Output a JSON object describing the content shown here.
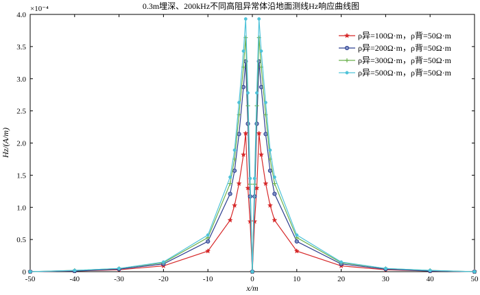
{
  "chart_data": {
    "type": "line",
    "title": "0.3m埋深、200kHz不同高阻异常体沿地面测线Hz响应曲线图",
    "xlabel": "x/m",
    "ylabel": "Hz/(A/m)",
    "y_multiplier": "×10⁻⁴",
    "xlim": [
      -50,
      50
    ],
    "ylim": [
      0,
      4.0
    ],
    "xticks": [
      "-50",
      "-40",
      "-30",
      "-20",
      "-10",
      "0",
      "10",
      "20",
      "30",
      "40",
      "50"
    ],
    "yticks": [
      "0",
      "0.5",
      "1.0",
      "1.5",
      "2.0",
      "2.5",
      "3.0",
      "3.5",
      "4.0"
    ],
    "grid": false,
    "legend_position": "top-right",
    "x": [
      -50,
      -40,
      -30,
      -20,
      -10,
      -5,
      -4,
      -3,
      -2,
      -1.5,
      -1,
      -0.5,
      0,
      0.5,
      1,
      1.5,
      2,
      3,
      4,
      5,
      10,
      20,
      30,
      40,
      50
    ],
    "series": [
      {
        "name": "ρ异=100Ω·m，ρ背=50Ω·m",
        "color": "#d62728",
        "marker": "star",
        "values": [
          0.0,
          0.01,
          0.03,
          0.09,
          0.32,
          0.8,
          1.03,
          1.37,
          1.82,
          2.15,
          1.3,
          0.78,
          0.0,
          0.78,
          1.3,
          2.15,
          1.82,
          1.37,
          1.03,
          0.8,
          0.32,
          0.09,
          0.03,
          0.01,
          0.0
        ]
      },
      {
        "name": "ρ异=200Ω·m，ρ背=50Ω·m",
        "color": "#2c3e8f",
        "marker": "circle",
        "values": [
          0.0,
          0.01,
          0.04,
          0.12,
          0.47,
          1.21,
          1.57,
          2.14,
          2.87,
          3.27,
          2.3,
          1.17,
          0.0,
          1.17,
          2.3,
          3.27,
          2.87,
          2.14,
          1.57,
          1.21,
          0.47,
          0.12,
          0.04,
          0.01,
          0.0
        ]
      },
      {
        "name": "ρ异=300Ω·m，ρ背=50Ω·m",
        "color": "#6ab04c",
        "marker": "plus",
        "values": [
          0.0,
          0.02,
          0.05,
          0.14,
          0.53,
          1.37,
          1.75,
          2.44,
          3.18,
          3.64,
          2.58,
          1.36,
          0.0,
          1.36,
          2.58,
          3.64,
          3.18,
          2.44,
          1.75,
          1.37,
          0.53,
          0.14,
          0.05,
          0.02,
          0.0
        ]
      },
      {
        "name": "ρ异=500Ω·m，ρ背=50Ω·m",
        "color": "#4fc3d9",
        "marker": "dot",
        "values": [
          0.0,
          0.02,
          0.05,
          0.15,
          0.57,
          1.47,
          1.89,
          2.63,
          3.43,
          3.93,
          2.78,
          1.45,
          0.0,
          1.45,
          2.78,
          3.93,
          3.43,
          2.63,
          1.89,
          1.47,
          0.57,
          0.15,
          0.05,
          0.02,
          0.0
        ]
      }
    ]
  }
}
